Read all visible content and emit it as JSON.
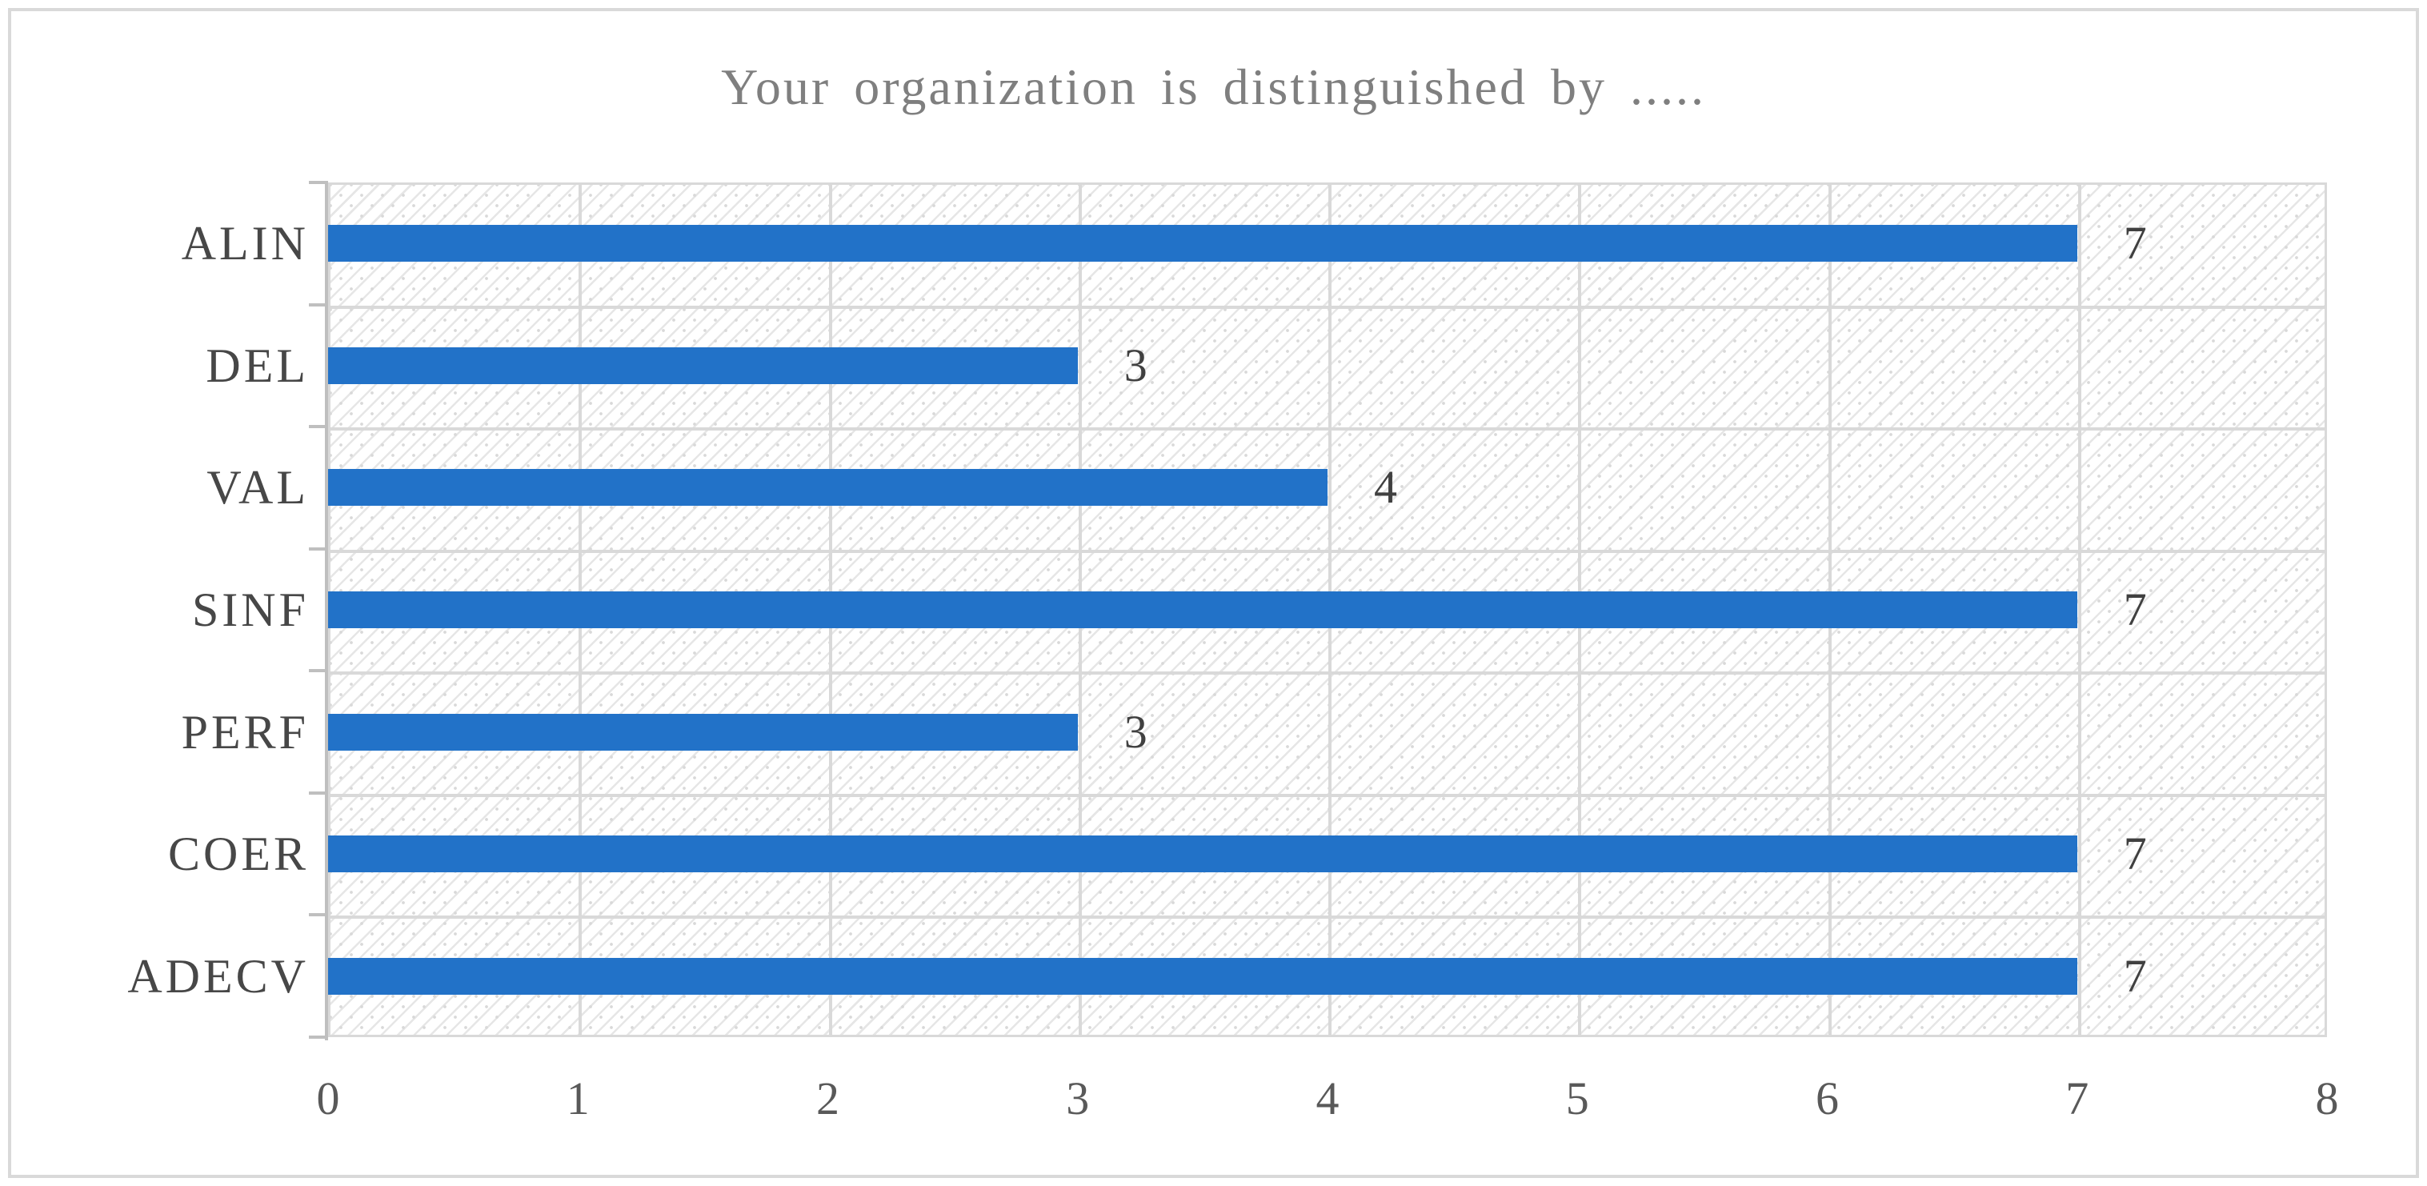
{
  "chart_data": {
    "type": "bar",
    "orientation": "horizontal",
    "title": "Your organization is distinguished by .....",
    "categories": [
      "ALIN",
      "DEL",
      "VAL",
      "SINF",
      "PERF",
      "COER",
      "ADECV"
    ],
    "values": [
      7,
      3,
      4,
      7,
      3,
      7,
      7
    ],
    "data_labels": [
      "7",
      "3",
      "4",
      "7",
      "3",
      "7",
      "7"
    ],
    "xlabel": "",
    "ylabel": "",
    "xlim": [
      0,
      8
    ],
    "x_ticks": [
      "0",
      "1",
      "2",
      "3",
      "4",
      "5",
      "6",
      "7",
      "8"
    ],
    "grid": "on",
    "legend": "none",
    "colors": {
      "bar": "#2272c8",
      "gridline": "#d9d9d9",
      "axis_line": "#bfbfbf",
      "title_text": "#7f7f7f",
      "category_text": "#474747",
      "value_text": "#404040",
      "tick_text": "#595959",
      "hatch": "#e6e6e6",
      "background": "#ffffff",
      "frame_border": "#d9d9d9"
    }
  }
}
